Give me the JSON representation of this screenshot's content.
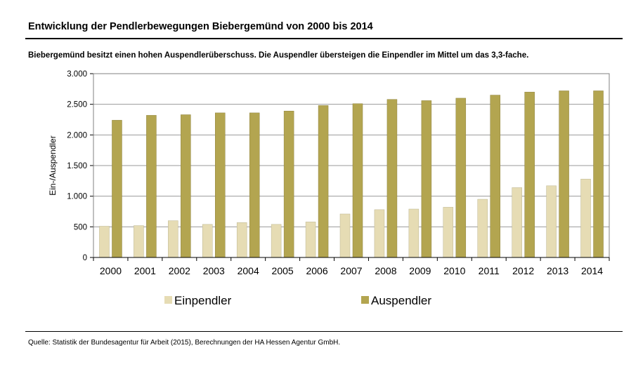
{
  "header": {
    "title": "Entwicklung der Pendlerbewegungen Biebergemünd von 2000 bis 2014",
    "subtitle": "Biebergemünd besitzt einen hohen Auspendlerüberschuss. Die Auspendler übersteigen die Einpendler im Mittel um das 3,3-fache."
  },
  "footer": {
    "source": "Quelle: Statistik der Bundesagentur für Arbeit (2015), Berechnungen der HA Hessen Agentur GmbH."
  },
  "chart_data": {
    "type": "bar",
    "title": "Entwicklung der Pendlerbewegungen Biebergemünd von 2000 bis 2014",
    "ylabel": "Ein-/Auspendler",
    "xlabel": "",
    "categories": [
      "2000",
      "2001",
      "2002",
      "2003",
      "2004",
      "2005",
      "2006",
      "2007",
      "2008",
      "2009",
      "2010",
      "2011",
      "2012",
      "2013",
      "2014"
    ],
    "series": [
      {
        "name": "Einpendler",
        "color": "#e6dcb4",
        "values": [
          510,
          520,
          600,
          540,
          570,
          540,
          580,
          710,
          780,
          790,
          820,
          950,
          1140,
          1170,
          1280
        ]
      },
      {
        "name": "Auspendler",
        "color": "#b3a550",
        "values": [
          2240,
          2320,
          2330,
          2360,
          2360,
          2390,
          2480,
          2510,
          2580,
          2560,
          2600,
          2650,
          2700,
          2720,
          2720
        ]
      }
    ],
    "ylim": [
      0,
      3000
    ],
    "yticks": [
      0,
      500,
      1000,
      1500,
      2000,
      2500,
      3000
    ],
    "ytick_labels": [
      "0",
      "500",
      "1.000",
      "1.500",
      "2.000",
      "2.500",
      "3.000"
    ],
    "grid": true,
    "legend_position": "bottom"
  }
}
